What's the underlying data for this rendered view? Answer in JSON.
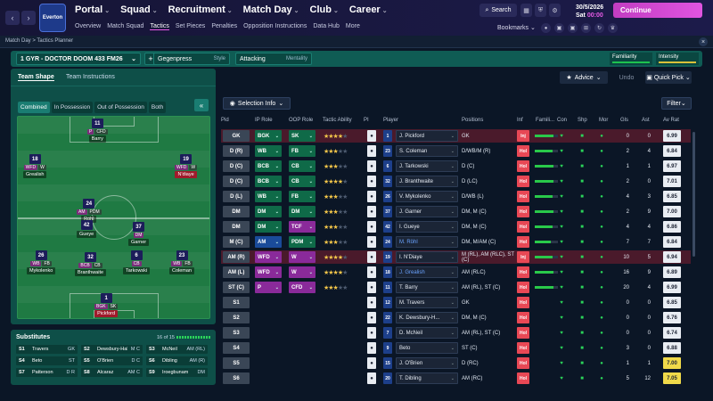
{
  "header": {
    "crest": "Everton",
    "main_nav": [
      {
        "label": "Portal",
        "active": false
      },
      {
        "label": "Squad",
        "active": false
      },
      {
        "label": "Recruitment",
        "active": false
      },
      {
        "label": "Match Day",
        "active": true
      },
      {
        "label": "Club",
        "active": false
      },
      {
        "label": "Career",
        "active": false
      }
    ],
    "sub_nav": [
      {
        "label": "Overview"
      },
      {
        "label": "Match Squad"
      },
      {
        "label": "Tactics",
        "active": true
      },
      {
        "label": "Set Pieces"
      },
      {
        "label": "Penalties"
      },
      {
        "label": "Opposition Instructions"
      },
      {
        "label": "Data Hub"
      },
      {
        "label": "More"
      }
    ],
    "search_label": "Search",
    "date": "30/5/2026",
    "day": "Sat",
    "time": "00:00",
    "continue_label": "Continue",
    "bookmarks_label": "Bookmarks"
  },
  "breadcrumb": "Match Day > Tactics Planner",
  "tactic_bar": {
    "tactic_name": "1  GYR - DOCTOR DOOM 433 FM26",
    "in_possession": {
      "value": "Gegenpress",
      "label": "Style"
    },
    "out_possession": {
      "value": "Attacking",
      "label": "Mentality"
    },
    "familiarity_label": "Familiarity",
    "intensity_label": "Intensity",
    "advice_label": "Advice",
    "undo_label": "Undo",
    "quick_pick_label": "Quick Pick"
  },
  "left_panel": {
    "tab_shape": "Team Shape",
    "tab_instructions": "Team Instructions",
    "phase_tabs": [
      {
        "label": "Combined",
        "on": true
      },
      {
        "label": "In Possession"
      },
      {
        "label": "Out of Possession"
      },
      {
        "label": "Both"
      }
    ],
    "players": [
      {
        "num": "11",
        "roles": [
          "P",
          "CFD"
        ],
        "name": "Barry"
      },
      {
        "num": "18",
        "roles": [
          "WFD",
          "W"
        ],
        "name": "Grealish"
      },
      {
        "num": "19",
        "roles": [
          "WFD",
          "W"
        ],
        "name": "N'diaye"
      },
      {
        "num": "24",
        "roles": [
          "AM",
          "PDM"
        ],
        "name": "Röhl"
      },
      {
        "num": "42",
        "roles": [],
        "name": "Gueye"
      },
      {
        "num": "37",
        "roles": [
          "DM"
        ],
        "name": "Garner"
      },
      {
        "num": "26",
        "roles": [
          "WB",
          "FB"
        ],
        "name": "Mykolenko"
      },
      {
        "num": "32",
        "roles": [
          "BCB",
          "CB"
        ],
        "name": "Branthwaite"
      },
      {
        "num": "6",
        "roles": [
          "CB"
        ],
        "name": "Tarkowski"
      },
      {
        "num": "23",
        "roles": [
          "WB",
          "FB"
        ],
        "name": "Coleman"
      },
      {
        "num": "1",
        "roles": [
          "BGK",
          "SK"
        ],
        "name": "Pickford"
      }
    ],
    "subs_title": "Substitutes",
    "subs_count": "16 of 15",
    "subs": [
      {
        "num": "S1",
        "name": "Travers",
        "pos": "GK"
      },
      {
        "num": "S2",
        "name": "Dewsbury-Hall",
        "pos": "M C"
      },
      {
        "num": "S3",
        "name": "McNeil",
        "pos": "AM (RL)"
      },
      {
        "num": "S4",
        "name": "Beto",
        "pos": "ST"
      },
      {
        "num": "S5",
        "name": "O'Brien",
        "pos": "D C"
      },
      {
        "num": "S6",
        "name": "Dibling",
        "pos": "AM (R)"
      },
      {
        "num": "S7",
        "name": "Patterson",
        "pos": "D R"
      },
      {
        "num": "S8",
        "name": "Alcaraz",
        "pos": "AM C"
      },
      {
        "num": "S9",
        "name": "Iroegbunam",
        "pos": "DM"
      }
    ]
  },
  "table": {
    "selection_info_label": "Selection Info",
    "filter_label": "Filter",
    "columns": [
      "Pid",
      "IP Role",
      "OOP Role",
      "Tactic Ability",
      "PI",
      "Player",
      "Positions",
      "Inf",
      "Famili...",
      "Con",
      "Shp",
      "Mor",
      "Gls",
      "Ast",
      "Av Rat"
    ],
    "rows": [
      {
        "pos": "GK",
        "ip": "BGK",
        "ipc": "g",
        "oop": "SK",
        "oopc": "g",
        "stars": 4,
        "shirt": "1",
        "player": "J. Pickford",
        "blue": false,
        "positions": "GK",
        "inf": "Inj",
        "fam": 0.8,
        "gls": "0",
        "ast": "0",
        "rat": "6.99",
        "hl": true
      },
      {
        "pos": "D (R)",
        "ip": "WB",
        "ipc": "g",
        "oop": "FB",
        "oopc": "g",
        "stars": 3,
        "shirt": "23",
        "player": "S. Coleman",
        "blue": false,
        "positions": "D/WB/M (R)",
        "inf": "Hol",
        "fam": 0.75,
        "gls": "2",
        "ast": "4",
        "rat": "6.84",
        "hl": false
      },
      {
        "pos": "D (C)",
        "ip": "BCB",
        "ipc": "g",
        "oop": "CB",
        "oopc": "g",
        "stars": 3,
        "shirt": "6",
        "player": "J. Tarkowski",
        "blue": false,
        "positions": "D (C)",
        "inf": "Hol",
        "fam": 0.8,
        "gls": "1",
        "ast": "1",
        "rat": "6.97",
        "hl": false
      },
      {
        "pos": "D (C)",
        "ip": "BCB",
        "ipc": "g",
        "oop": "CB",
        "oopc": "g",
        "stars": 4,
        "shirt": "32",
        "player": "J. Branthwaite",
        "blue": false,
        "positions": "D (LC)",
        "inf": "Hol",
        "fam": 0.8,
        "gls": "2",
        "ast": "0",
        "rat": "7.01",
        "hl": false
      },
      {
        "pos": "D (L)",
        "ip": "WB",
        "ipc": "g",
        "oop": "FB",
        "oopc": "g",
        "stars": 3,
        "shirt": "26",
        "player": "V. Mykolenko",
        "blue": false,
        "positions": "D/WB (L)",
        "inf": "Hol",
        "fam": 0.75,
        "gls": "4",
        "ast": "3",
        "rat": "6.85",
        "hl": false
      },
      {
        "pos": "DM",
        "ip": "DM",
        "ipc": "g",
        "oop": "DM",
        "oopc": "g",
        "stars": 3,
        "shirt": "37",
        "player": "J. Garner",
        "blue": false,
        "positions": "DM, M (C)",
        "inf": "Hol",
        "fam": 0.8,
        "gls": "2",
        "ast": "9",
        "rat": "7.00",
        "hl": false
      },
      {
        "pos": "DM",
        "ip": "DM",
        "ipc": "g",
        "oop": "TCF",
        "oopc": "p",
        "stars": 3,
        "shirt": "42",
        "player": "I. Gueye",
        "blue": false,
        "positions": "DM, M (C)",
        "inf": "Hol",
        "fam": 0.75,
        "gls": "4",
        "ast": "4",
        "rat": "6.86",
        "hl": false
      },
      {
        "pos": "M (C)",
        "ip": "AM",
        "ipc": "b",
        "oop": "PDM",
        "oopc": "g",
        "stars": 3,
        "shirt": "24",
        "player": "M. Röhl",
        "blue": true,
        "positions": "DM, M/AM (C)",
        "inf": "Hol",
        "fam": 0.7,
        "gls": "7",
        "ast": "7",
        "rat": "6.84",
        "hl": false
      },
      {
        "pos": "AM (R)",
        "ip": "WFD",
        "ipc": "p",
        "oop": "W",
        "oopc": "p",
        "stars": 4,
        "shirt": "19",
        "player": "I. N'Diaye",
        "blue": false,
        "positions": "M (RL), AM (RLC), ST (C)",
        "inf": "Inj",
        "fam": 0.75,
        "gls": "10",
        "ast": "5",
        "rat": "6.94",
        "hl": true
      },
      {
        "pos": "AM (L)",
        "ip": "WFD",
        "ipc": "p",
        "oop": "W",
        "oopc": "p",
        "stars": 4,
        "shirt": "18",
        "player": "J. Grealish",
        "blue": true,
        "positions": "AM (RLC)",
        "inf": "Hol",
        "fam": 0.8,
        "gls": "16",
        "ast": "9",
        "rat": "6.89",
        "hl": false
      },
      {
        "pos": "ST (C)",
        "ip": "P",
        "ipc": "p",
        "oop": "CFD",
        "oopc": "p",
        "stars": 3,
        "shirt": "11",
        "player": "T. Barry",
        "blue": false,
        "positions": "AM (RL), ST (C)",
        "inf": "Hol",
        "fam": 0.8,
        "gls": "20",
        "ast": "4",
        "rat": "6.99",
        "hl": false
      },
      {
        "pos": "S1",
        "ip": "",
        "oop": "",
        "stars": 0,
        "shirt": "12",
        "player": "M. Travers",
        "blue": false,
        "positions": "GK",
        "inf": "Hol",
        "fam": 0,
        "gls": "0",
        "ast": "0",
        "rat": "6.85",
        "hl": false
      },
      {
        "pos": "S2",
        "ip": "",
        "oop": "",
        "stars": 0,
        "shirt": "22",
        "player": "K. Dewsbury-H...",
        "blue": false,
        "positions": "DM, M (C)",
        "inf": "Hol",
        "fam": 0,
        "gls": "0",
        "ast": "0",
        "rat": "6.76",
        "hl": false
      },
      {
        "pos": "S3",
        "ip": "",
        "oop": "",
        "stars": 0,
        "shirt": "7",
        "player": "D. McNeil",
        "blue": false,
        "positions": "AM (RL), ST (C)",
        "inf": "Hol",
        "fam": 0,
        "gls": "0",
        "ast": "0",
        "rat": "6.74",
        "hl": false
      },
      {
        "pos": "S4",
        "ip": "",
        "oop": "",
        "stars": 0,
        "shirt": "9",
        "player": "Beto",
        "blue": false,
        "positions": "ST (C)",
        "inf": "Hol",
        "fam": 0,
        "gls": "3",
        "ast": "0",
        "rat": "6.88",
        "hl": false
      },
      {
        "pos": "S5",
        "ip": "",
        "oop": "",
        "stars": 0,
        "shirt": "15",
        "player": "J. O'Brien",
        "blue": false,
        "positions": "D (RC)",
        "inf": "Hol",
        "fam": 0,
        "gls": "1",
        "ast": "1",
        "rat": "7.00",
        "hl": false,
        "y": true
      },
      {
        "pos": "S6",
        "ip": "",
        "oop": "",
        "stars": 0,
        "shirt": "20",
        "player": "T. Dibling",
        "blue": false,
        "positions": "AM (RC)",
        "inf": "Hol",
        "fam": 0,
        "gls": "5",
        "ast": "12",
        "rat": "7.05",
        "hl": false,
        "y": true
      }
    ]
  }
}
